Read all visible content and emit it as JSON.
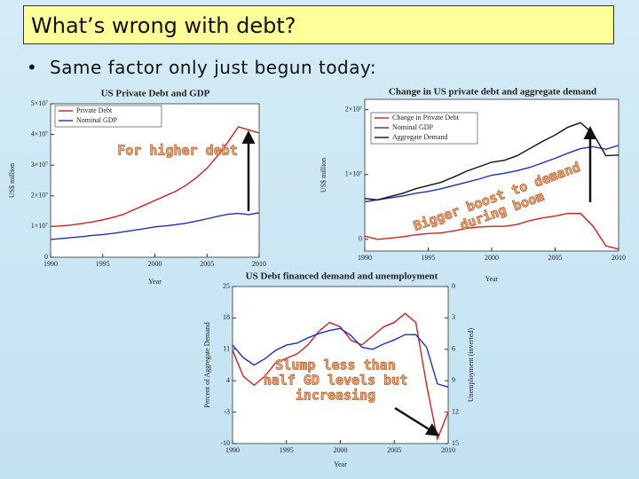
{
  "slide": {
    "title": "What’s wrong with debt?",
    "bullet": "Same factor only just begun today:"
  },
  "chart_data": [
    {
      "type": "line",
      "title": "US Private Debt and GDP",
      "xlabel": "Year",
      "ylabel": "US$ million",
      "annotation": [
        "For higher debt"
      ],
      "x": [
        1990,
        1991,
        1992,
        1993,
        1994,
        1995,
        1996,
        1997,
        1998,
        1999,
        2000,
        2001,
        2002,
        2003,
        2004,
        2005,
        2006,
        2007,
        2008,
        2009,
        2010
      ],
      "series": [
        {
          "name": "Private Debt",
          "color": "#d42020",
          "values": [
            10000000,
            10200000,
            10500000,
            11000000,
            11500000,
            12200000,
            13000000,
            14000000,
            15500000,
            17000000,
            18500000,
            20000000,
            21500000,
            23500000,
            26000000,
            29000000,
            33000000,
            37500000,
            42500000,
            41500000,
            40500000
          ]
        },
        {
          "name": "Nominal GDP",
          "color": "#1a2fc8",
          "values": [
            5800000,
            6100000,
            6400000,
            6700000,
            7100000,
            7400000,
            7800000,
            8300000,
            8800000,
            9300000,
            9900000,
            10200000,
            10600000,
            11100000,
            11800000,
            12500000,
            13300000,
            14000000,
            14300000,
            13900000,
            14500000
          ]
        }
      ],
      "xlim": [
        1990,
        2010
      ],
      "xticks": [
        1990,
        1995,
        2000,
        2005,
        2010
      ],
      "ylim": [
        0,
        50000000
      ],
      "yticks": [
        0,
        {
          "value": 10000000,
          "label": "1×10⁷"
        },
        {
          "value": 20000000,
          "label": "2×10⁷"
        },
        {
          "value": 30000000,
          "label": "3×10⁷"
        },
        {
          "value": 40000000,
          "label": "4×10⁷"
        },
        {
          "value": 50000000,
          "label": "5×10⁷"
        }
      ],
      "legend": "upper left"
    },
    {
      "type": "line",
      "title": "Change in US private debt and aggregate demand",
      "xlabel": "Year",
      "ylabel": "US$ million",
      "annotation": [
        "Bigger boost to demand",
        "during boom"
      ],
      "x": [
        1990,
        1991,
        1992,
        1993,
        1994,
        1995,
        1996,
        1997,
        1998,
        1999,
        2000,
        2001,
        2002,
        2003,
        2004,
        2005,
        2006,
        2007,
        2008,
        2009,
        2010
      ],
      "series": [
        {
          "name": "Change in Private Debt",
          "color": "#d42020",
          "values": [
            500000,
            0,
            200000,
            400000,
            700000,
            900000,
            1000000,
            1300000,
            1700000,
            1900000,
            2000000,
            2000000,
            2300000,
            2900000,
            3300000,
            3600000,
            4000000,
            4000000,
            2000000,
            -1000000,
            -1500000
          ]
        },
        {
          "name": "Nominal GDP",
          "color": "#1a2fc8",
          "values": [
            5800000,
            6100000,
            6400000,
            6700000,
            7100000,
            7400000,
            7800000,
            8300000,
            8800000,
            9300000,
            9900000,
            10200000,
            10600000,
            11100000,
            11800000,
            12500000,
            13300000,
            14000000,
            14300000,
            13900000,
            14500000
          ]
        },
        {
          "name": "Aggregate Demand",
          "color": "#111111",
          "values": [
            6300000,
            6100000,
            6600000,
            7100000,
            7800000,
            8300000,
            8800000,
            9600000,
            10500000,
            11200000,
            11900000,
            12200000,
            12900000,
            14000000,
            15100000,
            16100000,
            17300000,
            18000000,
            16300000,
            12900000,
            13000000
          ]
        }
      ],
      "xlim": [
        1990,
        2010
      ],
      "xticks": [
        1990,
        1995,
        2000,
        2005,
        2010
      ],
      "ylim": [
        -1800000,
        21600000
      ],
      "yticks": [
        0,
        {
          "value": 10000000,
          "label": "1×10⁷"
        },
        {
          "value": 20000000,
          "label": "2×10⁷"
        }
      ],
      "legend": "upper left"
    },
    {
      "type": "line",
      "title": "US Debt financed demand and unemployment",
      "xlabel": "Year",
      "ylabel": "Percent of Aggregate Demand",
      "y2label": "Unemployment (inverted)",
      "annotation": [
        "Slump less than",
        "half GD levels but",
        "increasing"
      ],
      "x": [
        1990,
        1991,
        1992,
        1993,
        1994,
        1995,
        1996,
        1997,
        1998,
        1999,
        2000,
        2001,
        2002,
        2003,
        2004,
        2005,
        2006,
        2007,
        2008,
        2009,
        2010
      ],
      "series": [
        {
          "color": "#d42020",
          "values": [
            10.8,
            5,
            3,
            5,
            8,
            9,
            10,
            12,
            15,
            17,
            16,
            13,
            12,
            14,
            16,
            17,
            19,
            17,
            3,
            -9,
            -3
          ]
        },
        {
          "color": "#1a2fc8",
          "axis": "y2",
          "values": [
            5.6,
            6.8,
            7.5,
            6.9,
            6.1,
            5.6,
            5.4,
            4.9,
            4.5,
            4.2,
            4.0,
            4.7,
            5.8,
            6.0,
            5.5,
            5.1,
            4.6,
            4.6,
            5.8,
            9.3,
            9.6
          ]
        }
      ],
      "xlim": [
        1990,
        2010
      ],
      "xticks": [
        1990,
        1995,
        2000,
        2005,
        2010
      ],
      "ylim": [
        -10,
        25
      ],
      "yticks": [
        -10,
        -3,
        4,
        11,
        18,
        25
      ],
      "y2lim": [
        15,
        0
      ],
      "y2ticks": [
        0,
        3,
        6,
        9,
        12,
        15
      ]
    }
  ]
}
